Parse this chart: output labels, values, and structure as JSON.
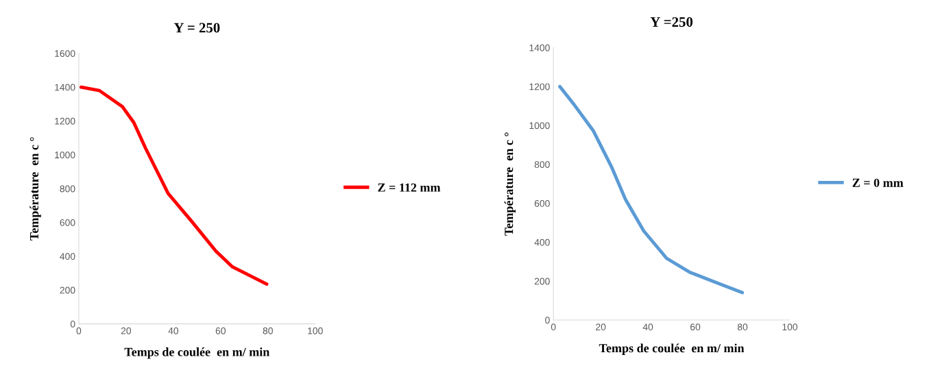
{
  "chart_data": [
    {
      "type": "line",
      "title": "Y = 250",
      "xlabel": "Temps de coulée  en m/ min",
      "ylabel": "Température  en c °",
      "xlim": [
        0,
        100
      ],
      "xticks": [
        0,
        20,
        40,
        60,
        80,
        100
      ],
      "ylim": [
        0,
        1600
      ],
      "yticks": [
        0,
        200,
        400,
        600,
        800,
        1000,
        1200,
        1400,
        1600
      ],
      "grid": false,
      "legend": "right",
      "marker": "none",
      "line_style": "solid",
      "series": [
        {
          "name": "Z = 112 mm",
          "color": "#ff0000",
          "x": [
            1,
            8.7,
            18.5,
            23.3,
            28.2,
            34,
            37.8,
            47.6,
            58,
            65,
            79.5
          ],
          "values": [
            1400,
            1380,
            1284,
            1190,
            1040,
            878,
            771,
            609,
            430,
            337,
            235
          ]
        }
      ]
    },
    {
      "type": "line",
      "title": "Y =250",
      "xlabel": "Temps de coulée  en m/ min",
      "ylabel": "Température  en c °",
      "xlim": [
        0,
        100
      ],
      "xticks": [
        0,
        20,
        40,
        60,
        80,
        100
      ],
      "ylim": [
        0,
        1400
      ],
      "yticks": [
        0,
        200,
        400,
        600,
        800,
        1000,
        1200,
        1400
      ],
      "grid": false,
      "legend": "right",
      "marker": "none",
      "line_style": "solid",
      "series": [
        {
          "name": "Z = 0 mm",
          "color": "#5b9bd5",
          "x": [
            2.7,
            9,
            16.8,
            24.6,
            30.4,
            38.2,
            47.9,
            57.6,
            67.3,
            79.9
          ],
          "values": [
            1200,
            1103,
            974,
            787,
            622,
            458,
            317,
            246,
            200,
            141
          ]
        }
      ]
    }
  ]
}
